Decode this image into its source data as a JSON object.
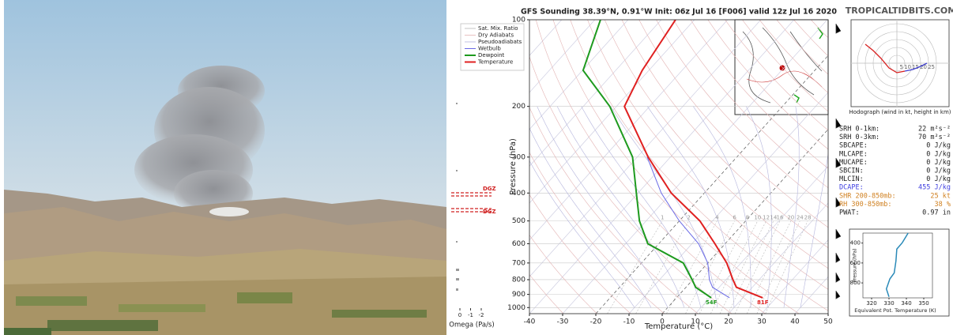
{
  "header": {
    "site": "TROPICALTIDBITS.COM"
  },
  "chart_data": [
    {
      "type": "skewt",
      "title": "GFS Sounding 38.39°N, 0.91°W Init: 06z Jul 16 [F006] valid 12z Jul 16 2020",
      "x_label": "Temperature (°C)",
      "y_label": "Pressure (hPa)",
      "xlim": [
        -40,
        50
      ],
      "xticks": [
        -40,
        -30,
        -20,
        -10,
        0,
        10,
        20,
        30,
        40,
        50
      ],
      "ylim": [
        1050,
        100
      ],
      "yticks": [
        100,
        200,
        300,
        400,
        500,
        600,
        700,
        800,
        900,
        1000
      ],
      "log_y": true,
      "legend": "top-left",
      "reference_lines": [
        {
          "name": "Sat. Mix. Ratio",
          "color": "#b8b8b8"
        },
        {
          "name": "Dry Adiabats",
          "color": "#e3b3b3"
        },
        {
          "name": "Pseudoadiabats",
          "color": "#b4b4dc"
        }
      ],
      "mixing_ratio_labels": [
        1,
        2,
        4,
        6,
        8,
        10,
        12,
        14,
        16,
        20,
        24,
        28
      ],
      "pressure": [
        925,
        850,
        800,
        700,
        600,
        500,
        400,
        300,
        200,
        150,
        100
      ],
      "series": [
        {
          "name": "Wetbulb",
          "color": "#6b6be6",
          "values": [
            16,
            8,
            5,
            0,
            -8,
            -20,
            -33,
            -47,
            null,
            null,
            null
          ]
        },
        {
          "name": "Dewpoint",
          "color": "#1e9a1e",
          "values": [
            10.5,
            2.9,
            -0.2,
            -7.4,
            -23.3,
            -32,
            -40.5,
            -51.4,
            -72,
            -89.8,
            -98.3
          ],
          "end_label": "54F"
        },
        {
          "name": "Temperature",
          "color": "#e02020",
          "values": [
            26,
            15.2,
            12.1,
            5.7,
            -3.1,
            -13.8,
            -30,
            -46.7,
            -67.6,
            -72,
            -75.7
          ],
          "end_label": "81F"
        }
      ]
    },
    {
      "type": "hodograph",
      "title": "Hodograph (wind in kt, height in km)",
      "rings": [
        5,
        10,
        15,
        20,
        25
      ],
      "series": [
        {
          "color": "#d82020",
          "x": [
            -20,
            -15,
            -10,
            -5,
            0,
            5
          ],
          "values": [
            12,
            8,
            3,
            -3,
            -6,
            -5
          ]
        },
        {
          "color": "#4040d0",
          "x": [
            5,
            10,
            15,
            19
          ],
          "values": [
            -5,
            -4,
            -2,
            0
          ]
        }
      ]
    },
    {
      "type": "line",
      "x_label": "Equivalent Pot. Temperature (K)",
      "y_label": "Pressure (hPa)",
      "xlim": [
        315,
        355
      ],
      "xticks": [
        320,
        330,
        340,
        350
      ],
      "ylim": [
        950,
        300
      ],
      "yticks": [
        400,
        600,
        800
      ],
      "series": [
        {
          "color": "#2a8ab8",
          "x": [
            341,
            337.5,
            334.5,
            334,
            333,
            330.5,
            328.5,
            330
          ],
          "values": [
            300,
            400,
            460,
            580,
            700,
            760,
            860,
            940
          ]
        }
      ]
    }
  ],
  "parameters": [
    {
      "label": "SRH 0-1km:",
      "value": "22 m²s⁻²",
      "color": "#222222"
    },
    {
      "label": "SRH 0-3km:",
      "value": "70 m²s⁻²",
      "color": "#222222"
    },
    {
      "label": "SBCAPE:",
      "value": "0 J/kg",
      "color": "#222222"
    },
    {
      "label": "MLCAPE:",
      "value": "0 J/kg",
      "color": "#222222"
    },
    {
      "label": "MUCAPE:",
      "value": "0 J/kg",
      "color": "#222222"
    },
    {
      "label": "SBCIN:",
      "value": "0 J/kg",
      "color": "#222222"
    },
    {
      "label": "MLCIN:",
      "value": "0 J/kg",
      "color": "#222222"
    },
    {
      "label": "DCAPE:",
      "value": "455 J/kg",
      "color": "#4040e0"
    },
    {
      "label": "SHR 200-850mb:",
      "value": "25 kt",
      "color": "#d08020"
    },
    {
      "label": "RH 300-850mb:",
      "value": "38 %",
      "color": "#d08020"
    },
    {
      "label": "PWAT:",
      "value": "0.97 in",
      "color": "#222222"
    }
  ],
  "omega": {
    "xticks": [
      0,
      -1,
      -2
    ],
    "x_label": "Omega (Pa/s)",
    "dgz_labels": [
      "DGZ",
      "DGZ"
    ]
  }
}
